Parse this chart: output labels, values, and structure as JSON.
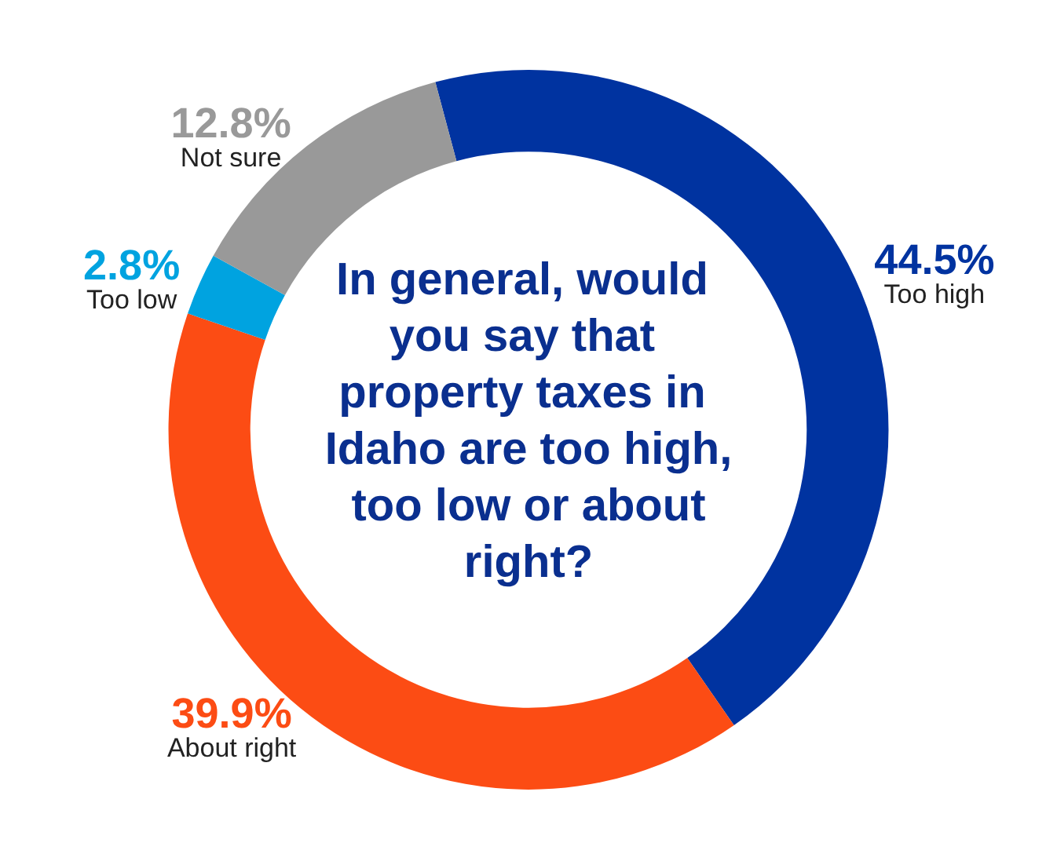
{
  "chart_data": {
    "type": "donut",
    "title": "In general, would you say that property taxes in Idaho are too high, too low or about right?",
    "categories": [
      "Too high",
      "About right",
      "Too low",
      "Not sure"
    ],
    "values": [
      44.5,
      39.9,
      2.8,
      12.8
    ],
    "colors": [
      "#0033a0",
      "#fc4c14",
      "#00a3e0",
      "#999999"
    ],
    "value_labels": [
      "44.5%",
      "39.9%",
      "2.8%",
      "12.8%"
    ]
  }
}
